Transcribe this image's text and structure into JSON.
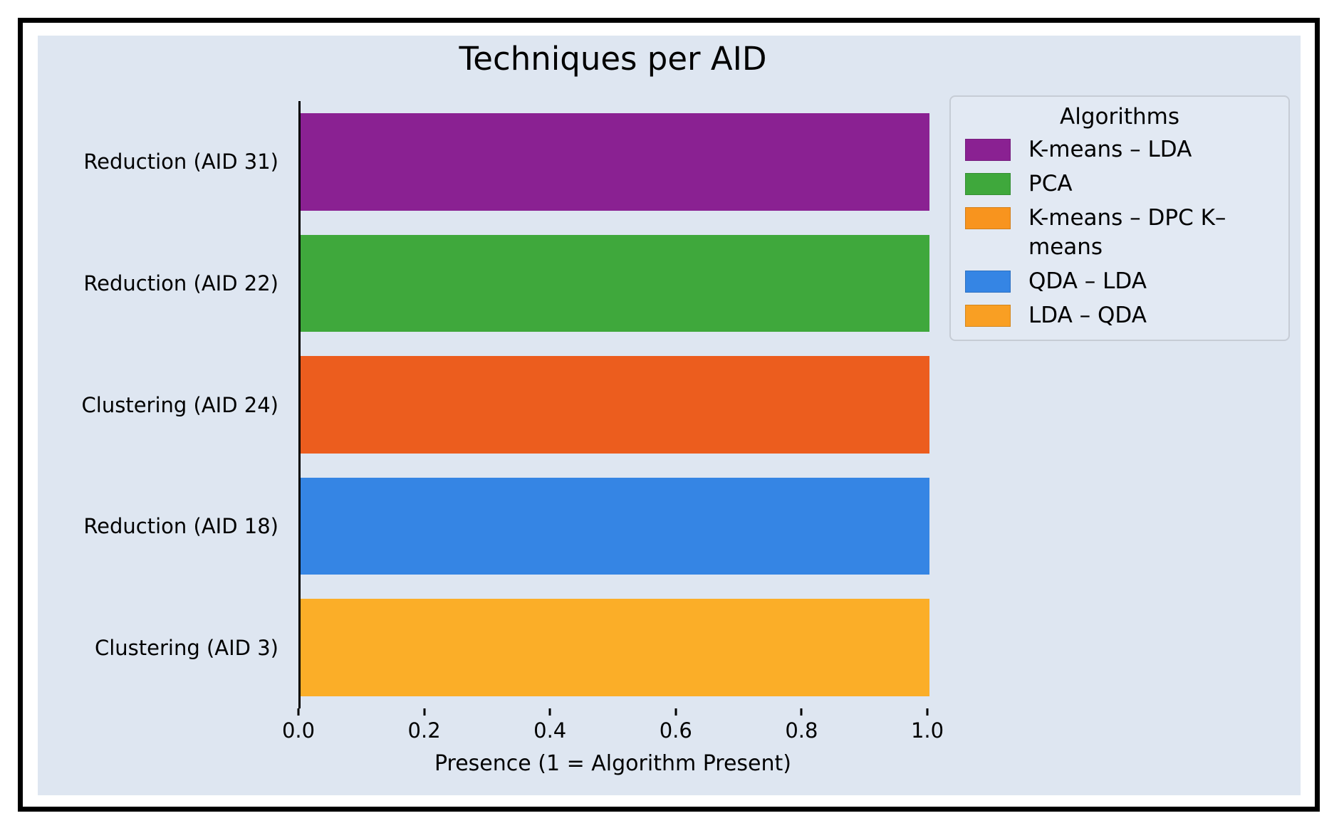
{
  "chart_data": {
    "type": "bar",
    "orientation": "horizontal",
    "title": "Techniques per AID",
    "xlabel": "Presence (1 = Algorithm Present)",
    "xlim": [
      0.0,
      1.0
    ],
    "xticks": [
      "0.0",
      "0.2",
      "0.4",
      "0.6",
      "0.8",
      "1.0"
    ],
    "grid": false,
    "panel_background": "#dee6f1",
    "categories": [
      "Reduction (AID 31)",
      "Reduction (AID 22)",
      "Clustering (AID 24)",
      "Reduction (AID 18)",
      "Clustering (AID 3)"
    ],
    "values": [
      1.0,
      1.0,
      1.0,
      1.0,
      1.0
    ],
    "bar_colors": [
      "#8a2192",
      "#3fa83c",
      "#ec5d1e",
      "#3585e4",
      "#fbae28"
    ],
    "legend": {
      "title": "Algorithms",
      "position": "upper right",
      "entries": [
        {
          "label": "K-means – LDA",
          "color": "#8a2192"
        },
        {
          "label": "PCA",
          "color": "#3fa83c"
        },
        {
          "label": "K-means – DPC K–means",
          "color": "#f8941e"
        },
        {
          "label": "QDA – LDA",
          "color": "#3585e4"
        },
        {
          "label": "LDA – QDA",
          "color": "#f99f23"
        }
      ]
    }
  }
}
